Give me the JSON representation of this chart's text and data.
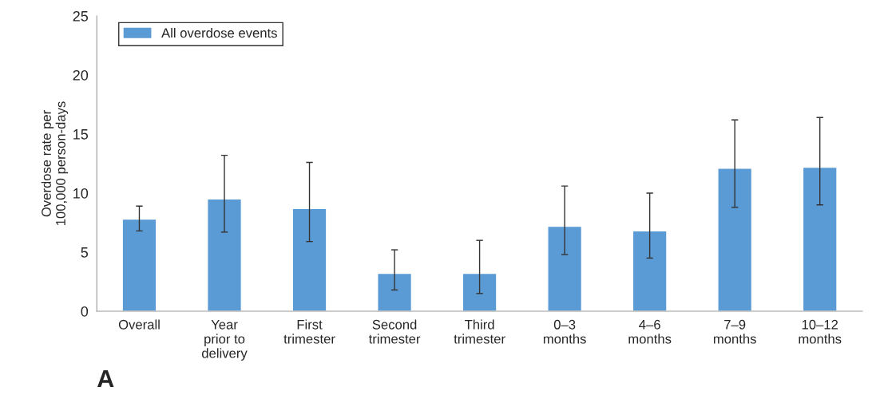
{
  "chart_data": {
    "type": "bar",
    "ylabel": "Overdose rate per\n100,000 person-days",
    "categories": [
      "Overall",
      "Year\nprior to\ndelivery",
      "First\ntrimester",
      "Second\ntrimester",
      "Third\ntrimester",
      "0–3\nmonths",
      "4–6\nmonths",
      "7–9\nmonths",
      "10–12\nmonths"
    ],
    "series": [
      {
        "name": "All overdose events",
        "color": "#5b9bd5",
        "values": [
          7.8,
          9.5,
          8.7,
          3.2,
          3.2,
          7.2,
          6.8,
          12.1,
          12.2
        ],
        "errors": [
          [
            6.8,
            8.9
          ],
          [
            6.7,
            13.2
          ],
          [
            5.9,
            12.6
          ],
          [
            1.8,
            5.2
          ],
          [
            1.5,
            6.0
          ],
          [
            4.8,
            10.6
          ],
          [
            4.5,
            10.0
          ],
          [
            8.8,
            16.2
          ],
          [
            9.0,
            16.4
          ]
        ]
      }
    ],
    "ylim": [
      0,
      25
    ],
    "yticks": [
      0,
      5,
      10,
      15,
      20,
      25
    ],
    "grid": false,
    "legend": "top left",
    "annotations": [
      "A"
    ]
  }
}
